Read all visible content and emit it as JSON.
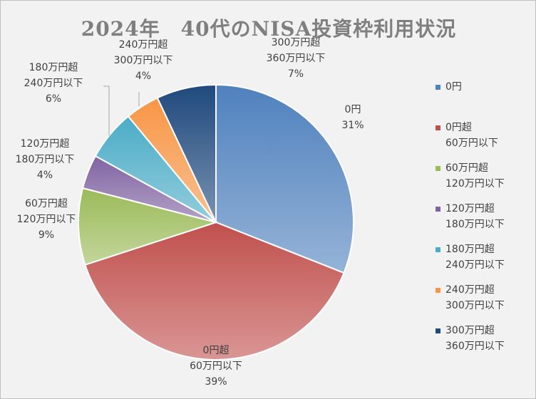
{
  "chart_data": {
    "type": "pie",
    "title": "2024年　40代のNISA投資枠利用状況",
    "categories": [
      "0円",
      "0円超\n60万円以下",
      "60万円超\n120万円以下",
      "120万円超\n180万円以下",
      "180万円超\n240万円以下",
      "240万円超\n300万円以下",
      "300万円超\n360万円以下"
    ],
    "values": [
      31,
      39,
      9,
      4,
      6,
      4,
      7
    ],
    "value_labels": [
      "31%",
      "39%",
      "9%",
      "4%",
      "6%",
      "4%",
      "7%"
    ],
    "colors": [
      "#4f81bd",
      "#c0504d",
      "#9bbb59",
      "#8064a2",
      "#4bacc6",
      "#f79646",
      "#1f497d"
    ],
    "legend_position": "right"
  }
}
